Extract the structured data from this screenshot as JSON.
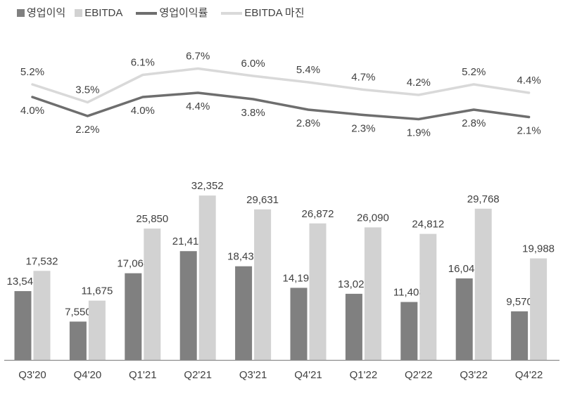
{
  "colors": {
    "operating_profit_bar": "#808080",
    "ebitda_bar": "#d2d2d2",
    "operating_margin_line": "#6e6e6e",
    "ebitda_margin_line": "#d9d9d9",
    "text": "#404040",
    "axis": "#8c8c8c",
    "background": "#ffffff"
  },
  "legend": {
    "items": [
      {
        "label": "영업이익",
        "marker": "square",
        "color": "#808080"
      },
      {
        "label": "EBITDA",
        "marker": "square",
        "color": "#d2d2d2"
      },
      {
        "label": "영업이익률",
        "marker": "line",
        "color": "#6e6e6e"
      },
      {
        "label": "EBITDA 마진",
        "marker": "line",
        "color": "#d9d9d9"
      }
    ]
  },
  "chart_data": [
    {
      "type": "line",
      "title": "",
      "unit": "%",
      "grid": false,
      "axes_visible": false,
      "legend_position": "top-left",
      "categories": [
        "Q3'20",
        "Q4'20",
        "Q1'21",
        "Q2'21",
        "Q3'21",
        "Q4'21",
        "Q1'22",
        "Q2'22",
        "Q3'22",
        "Q4'22"
      ],
      "series": [
        {
          "name": "영업이익률",
          "values": [
            4.0,
            2.2,
            4.0,
            4.4,
            3.8,
            2.8,
            2.3,
            1.9,
            2.8,
            2.1
          ],
          "labels": [
            "4.0%",
            "2.2%",
            "4.0%",
            "4.4%",
            "3.8%",
            "2.8%",
            "2.3%",
            "1.9%",
            "2.8%",
            "2.1%"
          ],
          "color": "#6e6e6e",
          "label_side": "below"
        },
        {
          "name": "EBITDA 마진",
          "values": [
            5.2,
            3.5,
            6.1,
            6.7,
            6.0,
            5.4,
            4.7,
            4.2,
            5.2,
            4.4
          ],
          "labels": [
            "5.2%",
            "3.5%",
            "6.1%",
            "6.7%",
            "6.0%",
            "5.4%",
            "4.7%",
            "4.2%",
            "5.2%",
            "4.4%"
          ],
          "color": "#d9d9d9",
          "label_side": "above"
        }
      ]
    },
    {
      "type": "bar",
      "title": "",
      "grid": false,
      "data_labels": true,
      "ylim": [
        0,
        35000
      ],
      "categories": [
        "Q3'20",
        "Q4'20",
        "Q1'21",
        "Q2'21",
        "Q3'21",
        "Q4'21",
        "Q1'22",
        "Q2'22",
        "Q3'22",
        "Q4'22"
      ],
      "series": [
        {
          "name": "영업이익",
          "values": [
            13547,
            7550,
            17064,
            21413,
            18436,
            14195,
            13020,
            11408,
            16049,
            9570
          ],
          "labels": [
            "13,547",
            "7,550",
            "17,064",
            "21,413",
            "18,436",
            "14,195",
            "13,020",
            "11,408",
            "16,049",
            "9,570"
          ],
          "color": "#808080"
        },
        {
          "name": "EBITDA",
          "values": [
            17532,
            11675,
            25850,
            32352,
            29631,
            26872,
            26090,
            24812,
            29768,
            19988
          ],
          "labels": [
            "17,532",
            "11,675",
            "25,850",
            "32,352",
            "29,631",
            "26,872",
            "26,090",
            "24,812",
            "29,768",
            "19,988"
          ],
          "color": "#d2d2d2"
        }
      ]
    }
  ]
}
